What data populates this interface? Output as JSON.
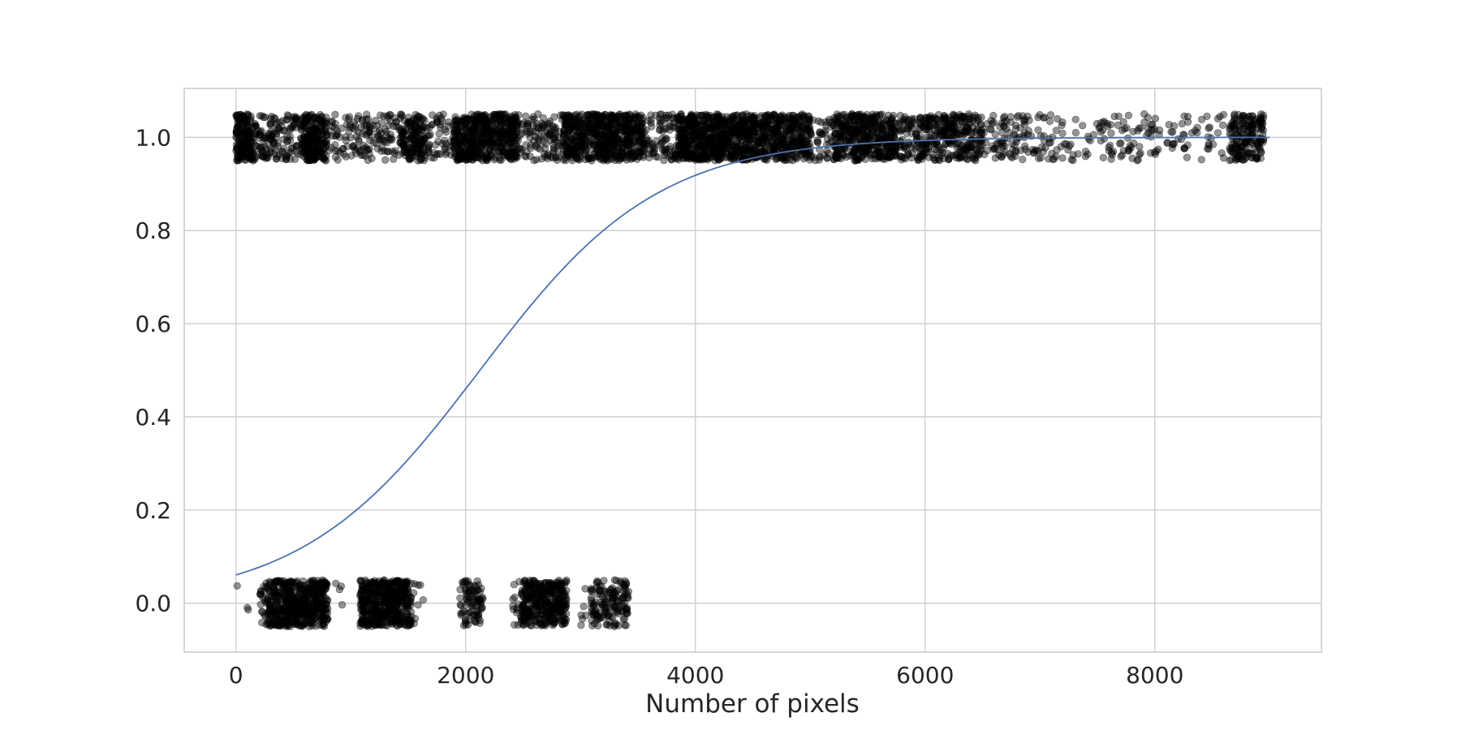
{
  "chart_data": {
    "type": "scatter",
    "title": "",
    "xlabel": "Number of pixels",
    "ylabel": "",
    "xlim": [
      -450,
      9450
    ],
    "ylim": [
      -0.105,
      1.105
    ],
    "xticks": [
      0,
      2000,
      4000,
      6000,
      8000
    ],
    "xtick_labels": [
      "0",
      "2000",
      "4000",
      "6000",
      "8000"
    ],
    "yticks": [
      0.0,
      0.2,
      0.4,
      0.6,
      0.8,
      1.0
    ],
    "ytick_labels": [
      "0.0",
      "0.2",
      "0.4",
      "0.6",
      "0.8",
      "1.0"
    ],
    "grid": true,
    "legend": "none",
    "series": [
      {
        "kind": "scatter",
        "color": "#000000",
        "y_jitter": 0.05,
        "clusters": [
          {
            "y": 0,
            "x_range": [
              0,
              160
            ],
            "count": 3
          },
          {
            "y": 0,
            "x_range": [
              200,
              280
            ],
            "count": 25
          },
          {
            "y": 0,
            "x_range": [
              280,
              800
            ],
            "count": 520
          },
          {
            "y": 0,
            "x_range": [
              860,
              930
            ],
            "count": 4
          },
          {
            "y": 0,
            "x_range": [
              1080,
              1530
            ],
            "count": 480
          },
          {
            "y": 0,
            "x_range": [
              1530,
              1640
            ],
            "count": 8
          },
          {
            "y": 0,
            "x_range": [
              1950,
              2150
            ],
            "count": 90
          },
          {
            "y": 0,
            "x_range": [
              2400,
              2480
            ],
            "count": 12
          },
          {
            "y": 0,
            "x_range": [
              2480,
              2880
            ],
            "count": 360
          },
          {
            "y": 0,
            "x_range": [
              3000,
              3050
            ],
            "count": 6
          },
          {
            "y": 0,
            "x_range": [
              3090,
              3420
            ],
            "count": 150
          },
          {
            "y": 1,
            "x_range": [
              0,
              130
            ],
            "count": 160
          },
          {
            "y": 1,
            "x_range": [
              130,
              540
            ],
            "count": 150
          },
          {
            "y": 1,
            "x_range": [
              560,
              790
            ],
            "count": 230
          },
          {
            "y": 1,
            "x_range": [
              790,
              1050
            ],
            "count": 50
          },
          {
            "y": 1,
            "x_range": [
              1050,
              1420
            ],
            "count": 90
          },
          {
            "y": 1,
            "x_range": [
              1420,
              1640
            ],
            "count": 150
          },
          {
            "y": 1,
            "x_range": [
              1640,
              1900
            ],
            "count": 60
          },
          {
            "y": 1,
            "x_range": [
              1900,
              2200
            ],
            "count": 290
          },
          {
            "y": 1,
            "x_range": [
              2200,
              2450
            ],
            "count": 220
          },
          {
            "y": 1,
            "x_range": [
              2450,
              2850
            ],
            "count": 110
          },
          {
            "y": 1,
            "x_range": [
              2850,
              3550
            ],
            "count": 620
          },
          {
            "y": 1,
            "x_range": [
              3550,
              3850
            ],
            "count": 90
          },
          {
            "y": 1,
            "x_range": [
              3850,
              4250
            ],
            "count": 430
          },
          {
            "y": 1,
            "x_range": [
              4250,
              5000
            ],
            "count": 620
          },
          {
            "y": 1,
            "x_range": [
              5000,
              5200
            ],
            "count": 40
          },
          {
            "y": 1,
            "x_range": [
              5200,
              5750
            ],
            "count": 420
          },
          {
            "y": 1,
            "x_range": [
              5750,
              5900
            ],
            "count": 50
          },
          {
            "y": 1,
            "x_range": [
              5900,
              6500
            ],
            "count": 320
          },
          {
            "y": 1,
            "x_range": [
              6500,
              7100
            ],
            "count": 110
          },
          {
            "y": 1,
            "x_range": [
              7100,
              8600
            ],
            "count": 150
          },
          {
            "y": 1,
            "x_range": [
              8650,
              8950
            ],
            "count": 180
          }
        ]
      },
      {
        "kind": "line",
        "color": "#4c72b0",
        "model": "logistic",
        "x_range": [
          0,
          9000
        ],
        "intercept": -2.74,
        "slope": 0.00129
      }
    ]
  }
}
